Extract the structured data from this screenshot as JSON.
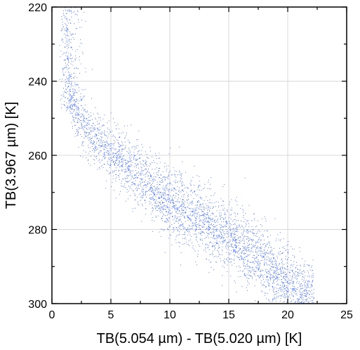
{
  "chart_data": {
    "type": "scatter",
    "title": "",
    "xlabel": "TB(5.054 µm) - TB(5.020 µm) [K]",
    "ylabel": "TB(3.967 µm) [K]",
    "xlim": [
      0,
      25
    ],
    "ylim": [
      300,
      220
    ],
    "y_axis_inverted": true,
    "x_ticks": [
      0,
      5,
      10,
      15,
      20,
      25
    ],
    "y_ticks": [
      220,
      240,
      260,
      280,
      300
    ],
    "x_minor_ticks": [
      2.5,
      7.5,
      12.5,
      17.5,
      22.5
    ],
    "y_minor_ticks": [
      230,
      250,
      270,
      290
    ],
    "grid": true,
    "point_color": "#1a4dff",
    "density_ridge": {
      "description_points_x": [
        1.2,
        1.5,
        2.5,
        4,
        6,
        8,
        10,
        12,
        14,
        16,
        18,
        20,
        21.5
      ],
      "description_points_y": [
        225,
        245,
        251,
        256,
        262,
        267,
        272,
        276,
        280,
        284,
        289,
        294,
        298
      ]
    }
  }
}
